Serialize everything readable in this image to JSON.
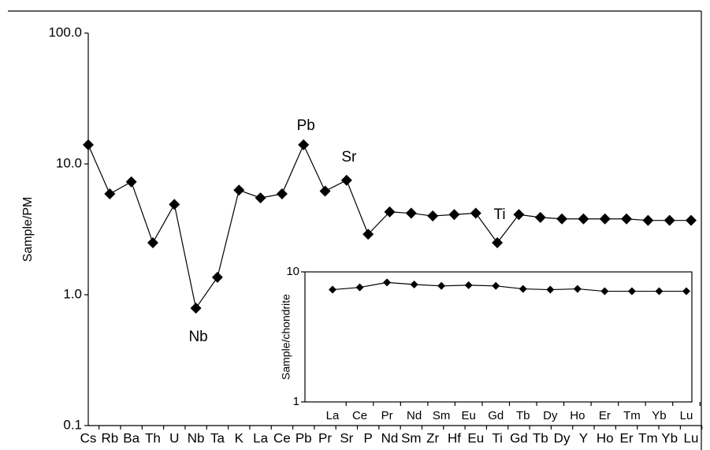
{
  "chart_data": [
    {
      "type": "line",
      "ylabel": "Sample/PM",
      "log_y": true,
      "marker": "diamond",
      "categories": [
        "Cs",
        "Rb",
        "Ba",
        "Th",
        "U",
        "Nb",
        "Ta",
        "K",
        "La",
        "Ce",
        "Pb",
        "Pr",
        "Sr",
        "P",
        "Nd",
        "Sm",
        "Zr",
        "Hf",
        "Eu",
        "Ti",
        "Gd",
        "Tb",
        "Dy",
        "Y",
        "Ho",
        "Er",
        "Tm",
        "Yb",
        "Lu"
      ],
      "series": [
        {
          "color": "#000000",
          "values": [
            14.0,
            5.9,
            7.3,
            2.5,
            4.9,
            0.79,
            1.36,
            6.3,
            5.5,
            5.9,
            14.0,
            6.2,
            7.5,
            2.9,
            4.3,
            4.2,
            4.0,
            4.1,
            4.2,
            2.5,
            4.1,
            3.9,
            3.8,
            3.8,
            3.8,
            3.8,
            3.7,
            3.7,
            3.7
          ]
        }
      ],
      "ylim": [
        0.1,
        100
      ],
      "yticks": [
        {
          "value": 0.1,
          "label": "0.1"
        },
        {
          "value": 1,
          "label": "1.0"
        },
        {
          "value": 10,
          "label": "10.0"
        },
        {
          "value": 100,
          "label": "100.0"
        }
      ],
      "annotations": [
        "Nb",
        "Pb",
        "Sr",
        "Ti"
      ]
    },
    {
      "type": "line",
      "ylabel": "Sample/chondrite",
      "log_y": true,
      "marker": "diamond",
      "categories": [
        "La",
        "Ce",
        "Pr",
        "Nd",
        "Sm",
        "Eu",
        "Gd",
        "Tb",
        "Dy",
        "Ho",
        "Er",
        "Tm",
        "Yb",
        "Lu"
      ],
      "series": [
        {
          "color": "#000000",
          "values": [
            7.3,
            7.6,
            8.3,
            8.0,
            7.8,
            7.9,
            7.8,
            7.4,
            7.3,
            7.4,
            7.1,
            7.1,
            7.1,
            7.1
          ]
        }
      ],
      "ylim": [
        1,
        10
      ],
      "yticks": [
        1,
        10
      ]
    }
  ]
}
